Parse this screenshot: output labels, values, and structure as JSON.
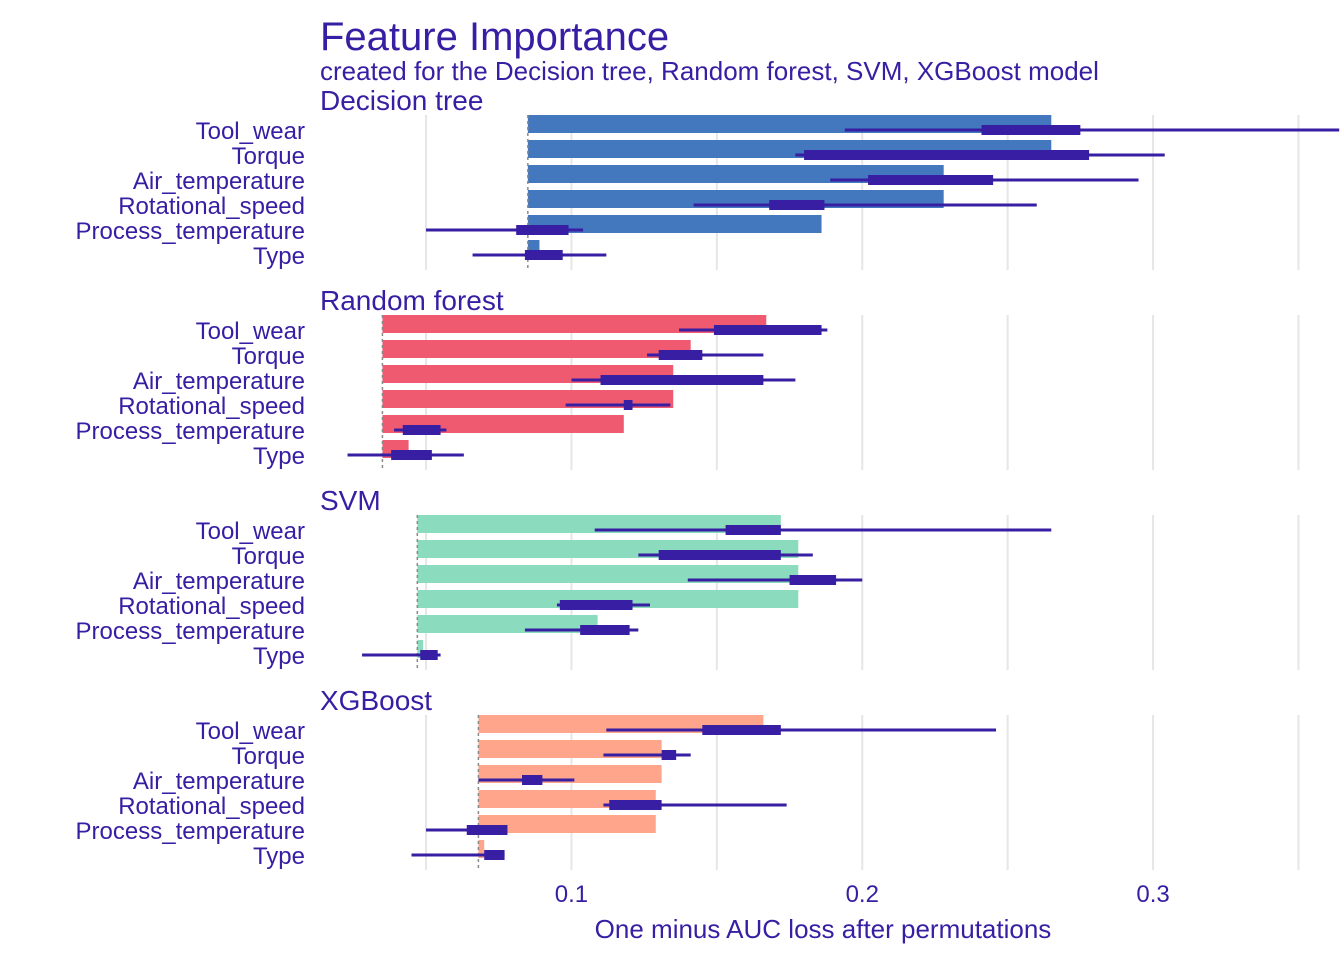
{
  "chart_data": {
    "type": "bar",
    "title": "Feature Importance",
    "subtitle": "created for the Decision tree, Random forest, SVM, XGBoost model",
    "xlabel": "One minus AUC loss after permutations",
    "xlim": [
      0.007,
      0.366
    ],
    "xticks": [
      0.1,
      0.2,
      0.3
    ],
    "xtick_labels": [
      "0.1",
      "0.2",
      "0.3"
    ],
    "grid": true,
    "colors": {
      "text": "#371EA3",
      "Decision tree": "#4378BF",
      "Random forest": "#F05A71",
      "SVM": "#8BDCBE",
      "XGBoost": "#FFA58C",
      "grid": "#E6E6E6"
    },
    "categories": [
      "Tool_wear",
      "Torque",
      "Air_temperature",
      "Rotational_speed",
      "Process_temperature",
      "Type"
    ],
    "panels": [
      {
        "name": "Decision tree",
        "baseline": 0.085,
        "values": [
          0.265,
          0.265,
          0.228,
          0.228,
          0.186,
          0.089
        ],
        "whisker": [
          [
            0.194,
            0.364
          ],
          [
            0.177,
            0.304
          ],
          [
            0.189,
            0.295
          ],
          [
            0.142,
            0.26
          ],
          [
            0.05,
            0.104
          ],
          [
            0.066,
            0.112
          ]
        ],
        "box": [
          [
            0.241,
            0.275
          ],
          [
            0.18,
            0.278
          ],
          [
            0.202,
            0.245
          ],
          [
            0.168,
            0.187
          ],
          [
            0.081,
            0.099
          ],
          [
            0.084,
            0.097
          ]
        ]
      },
      {
        "name": "Random forest",
        "baseline": 0.035,
        "values": [
          0.167,
          0.141,
          0.135,
          0.135,
          0.118,
          0.044
        ],
        "whisker": [
          [
            0.137,
            0.188
          ],
          [
            0.126,
            0.166
          ],
          [
            0.1,
            0.177
          ],
          [
            0.098,
            0.134
          ],
          [
            0.039,
            0.057
          ],
          [
            0.023,
            0.063
          ]
        ],
        "box": [
          [
            0.149,
            0.186
          ],
          [
            0.13,
            0.145
          ],
          [
            0.11,
            0.166
          ],
          [
            0.118,
            0.121
          ],
          [
            0.042,
            0.055
          ],
          [
            0.038,
            0.052
          ]
        ]
      },
      {
        "name": "SVM",
        "baseline": 0.047,
        "values": [
          0.172,
          0.178,
          0.178,
          0.178,
          0.109,
          0.049
        ],
        "whisker": [
          [
            0.108,
            0.265
          ],
          [
            0.123,
            0.183
          ],
          [
            0.14,
            0.2
          ],
          [
            0.095,
            0.127
          ],
          [
            0.084,
            0.123
          ],
          [
            0.028,
            0.055
          ]
        ],
        "box": [
          [
            0.153,
            0.172
          ],
          [
            0.13,
            0.172
          ],
          [
            0.175,
            0.191
          ],
          [
            0.096,
            0.121
          ],
          [
            0.103,
            0.12
          ],
          [
            0.048,
            0.054
          ]
        ]
      },
      {
        "name": "XGBoost",
        "baseline": 0.068,
        "values": [
          0.166,
          0.131,
          0.131,
          0.129,
          0.129,
          0.07
        ],
        "whisker": [
          [
            0.112,
            0.246
          ],
          [
            0.111,
            0.141
          ],
          [
            0.068,
            0.101
          ],
          [
            0.111,
            0.174
          ],
          [
            0.05,
            0.077
          ],
          [
            0.045,
            0.077
          ]
        ],
        "box": [
          [
            0.145,
            0.172
          ],
          [
            0.131,
            0.136
          ],
          [
            0.083,
            0.09
          ],
          [
            0.113,
            0.131
          ],
          [
            0.064,
            0.078
          ],
          [
            0.07,
            0.077
          ]
        ]
      }
    ]
  }
}
